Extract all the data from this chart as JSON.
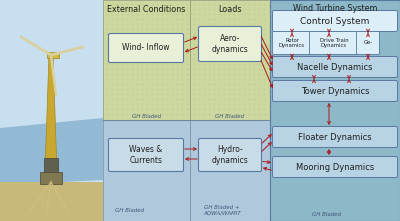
{
  "fig_bg": "#c5d9e8",
  "left_sky_bg": "#c8dff0",
  "left_water_bg": "#9bbdd4",
  "left_sand_bg": "#c8b87a",
  "ext_cond_bg": "#cdd8a0",
  "loads_bg": "#cdd8a0",
  "lower_ext_bg": "#b0c8dc",
  "lower_loads_bg": "#b0c8dc",
  "wts_bg": "#8cb8c8",
  "box_fill_green": "#e8f0d8",
  "box_fill_blue": "#c8dce8",
  "box_fill_light": "#dceef8",
  "box_stroke_dark": "#5878a0",
  "arrow_color": "#aa1818",
  "text_dark": "#202020",
  "text_label": "#405878",
  "section_titles": [
    "External Conditions",
    "Loads",
    "Wind Turbine System"
  ],
  "label_wind_inflow": "Wind- Inflow",
  "label_aero": "Aero-\ndynamics",
  "label_waves": "Waves &\nCurrents",
  "label_hydro": "Hydro-\ndynamics",
  "gh_labels": [
    [
      147,
      114,
      "GH Bladed"
    ],
    [
      230,
      114,
      "GH Bladed"
    ],
    [
      130,
      208,
      "GH Bladed"
    ],
    [
      222,
      205,
      "GH Bladed +\nAQWA/WAMIT"
    ],
    [
      327,
      212,
      "GH Bladed"
    ]
  ]
}
